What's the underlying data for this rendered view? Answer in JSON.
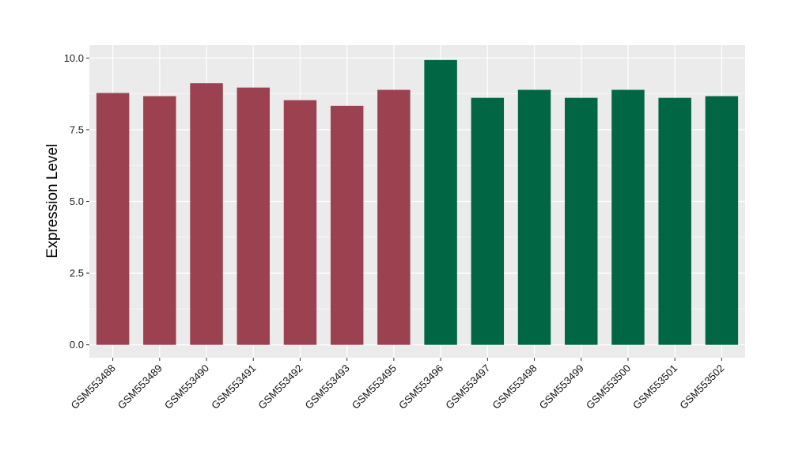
{
  "chart_data": {
    "type": "bar",
    "title": "",
    "xlabel": "",
    "ylabel": "Expression Level",
    "ylim": [
      -0.45,
      10.45
    ],
    "yticks": [
      "0.0",
      "2.5",
      "5.0",
      "7.5",
      "10.0"
    ],
    "grid": true,
    "legend": "none",
    "categories": [
      "GSM553488",
      "GSM553489",
      "GSM553490",
      "GSM553491",
      "GSM553492",
      "GSM553493",
      "GSM553495",
      "GSM553496",
      "GSM553497",
      "GSM553498",
      "GSM553499",
      "GSM553500",
      "GSM553501",
      "GSM553502"
    ],
    "values": [
      8.78,
      8.67,
      9.12,
      8.97,
      8.53,
      8.33,
      8.89,
      9.93,
      8.61,
      8.89,
      8.61,
      8.89,
      8.61,
      8.67
    ],
    "groups": [
      0,
      0,
      0,
      0,
      0,
      0,
      0,
      1,
      1,
      1,
      1,
      1,
      1,
      1
    ],
    "colors": [
      "#9b4150",
      "#006644"
    ],
    "panel_bg": "#ebebeb"
  }
}
